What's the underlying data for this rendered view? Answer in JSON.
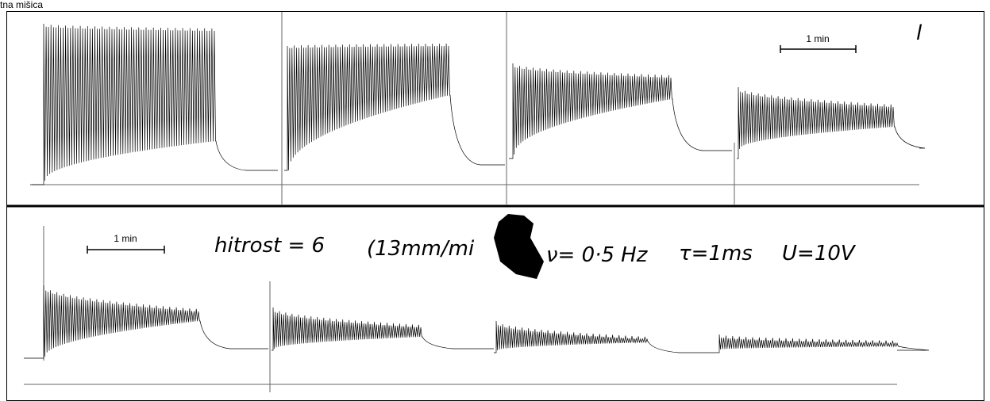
{
  "header": {
    "title": "tna mišica"
  },
  "panels": [
    {
      "scale_label": "1 min",
      "note": "l"
    },
    {
      "scale_label": "1 min",
      "annotations": [
        "hitrost = 6",
        "(13mm/mi",
        "ν= 0·5 Hz",
        "τ=1ms",
        "U=10V"
      ]
    }
  ]
}
